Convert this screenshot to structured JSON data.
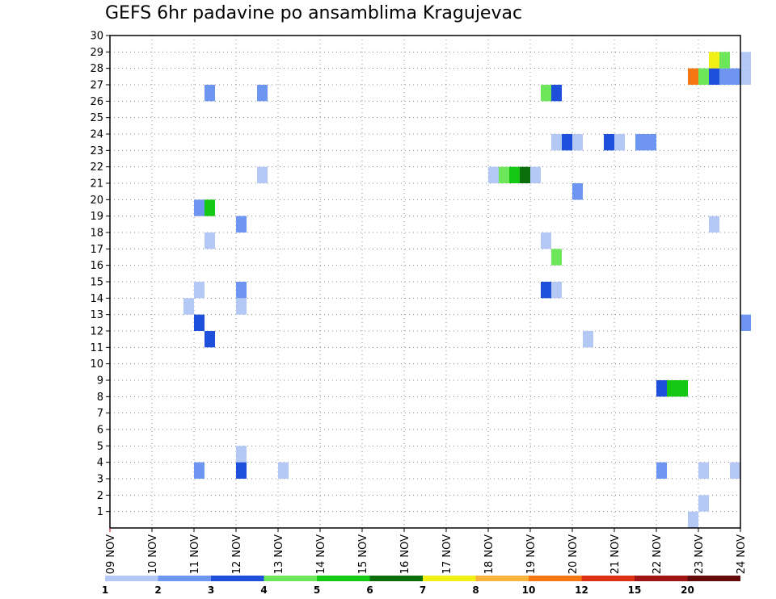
{
  "chart_data": {
    "type": "heatmap",
    "title": "GEFS 6hr padavine po ansamblima Kragujevac",
    "x_ticks": [
      "09 NOV",
      "10 NOV",
      "11 NOV",
      "12 NOV",
      "13 NOV",
      "14 NOV",
      "15 NOV",
      "16 NOV",
      "17 NOV",
      "18 NOV",
      "19 NOV",
      "20 NOV",
      "21 NOV",
      "22 NOV",
      "23 NOV",
      "24 NOV"
    ],
    "y_ticks": [
      1,
      2,
      3,
      4,
      5,
      6,
      7,
      8,
      9,
      10,
      11,
      12,
      13,
      14,
      15,
      16,
      17,
      18,
      19,
      20,
      21,
      22,
      23,
      24,
      25,
      26,
      27,
      28,
      29,
      30
    ],
    "ylim": [
      0,
      30
    ],
    "xlim_days": [
      0,
      15
    ],
    "grid": true,
    "colorbar": {
      "labels": [
        "1",
        "2",
        "3",
        "4",
        "5",
        "6",
        "7",
        "8",
        "10",
        "12",
        "15",
        "20"
      ],
      "colors": [
        "#b4c8f5",
        "#6e96f0",
        "#1e50dc",
        "#6ee65a",
        "#14c814",
        "#0a6e0a",
        "#f0f014",
        "#fab43c",
        "#f57814",
        "#dc3214",
        "#a01414",
        "#640a0a"
      ]
    },
    "cells": [
      {
        "day": 11,
        "step": 1,
        "member": 27,
        "color": "#6e96f0"
      },
      {
        "day": 12,
        "step": 2,
        "member": 27,
        "color": "#6e96f0"
      },
      {
        "day": 19,
        "step": 1,
        "member": 27,
        "color": "#6ee65a"
      },
      {
        "day": 19,
        "step": 2,
        "member": 27,
        "color": "#1e50dc"
      },
      {
        "day": 22,
        "step": 3,
        "member": 28,
        "color": "#f57814"
      },
      {
        "day": 23,
        "step": 0,
        "member": 28,
        "color": "#6ee65a"
      },
      {
        "day": 23,
        "step": 1,
        "member": 28,
        "color": "#1e50dc"
      },
      {
        "day": 23,
        "step": 2,
        "member": 28,
        "color": "#6e96f0"
      },
      {
        "day": 23,
        "step": 3,
        "member": 28,
        "color": "#6e96f0"
      },
      {
        "day": 23,
        "step": 4,
        "member": 28,
        "color": "#b4c8f5"
      },
      {
        "day": 23,
        "step": 1,
        "member": 29,
        "color": "#f0f014"
      },
      {
        "day": 23,
        "step": 2,
        "member": 29,
        "color": "#6ee65a"
      },
      {
        "day": 23,
        "step": 4,
        "member": 29,
        "color": "#b4c8f5"
      },
      {
        "day": 19,
        "step": 2,
        "member": 24,
        "color": "#b4c8f5"
      },
      {
        "day": 19,
        "step": 3,
        "member": 24,
        "color": "#1e50dc"
      },
      {
        "day": 20,
        "step": 0,
        "member": 24,
        "color": "#b4c8f5"
      },
      {
        "day": 20,
        "step": 3,
        "member": 24,
        "color": "#1e50dc"
      },
      {
        "day": 21,
        "step": 0,
        "member": 24,
        "color": "#b4c8f5"
      },
      {
        "day": 21,
        "step": 2,
        "member": 24,
        "color": "#6e96f0"
      },
      {
        "day": 21,
        "step": 3,
        "member": 24,
        "color": "#6e96f0"
      },
      {
        "day": 12,
        "step": 2,
        "member": 22,
        "color": "#b4c8f5"
      },
      {
        "day": 18,
        "step": 0,
        "member": 22,
        "color": "#b4c8f5"
      },
      {
        "day": 18,
        "step": 1,
        "member": 22,
        "color": "#6ee65a"
      },
      {
        "day": 18,
        "step": 2,
        "member": 22,
        "color": "#14c814"
      },
      {
        "day": 18,
        "step": 3,
        "member": 22,
        "color": "#0a6e0a"
      },
      {
        "day": 18,
        "step": 4,
        "member": 22,
        "color": "#b4c8f5"
      },
      {
        "day": 19,
        "step": 4,
        "member": 21,
        "color": "#6e96f0"
      },
      {
        "day": 20,
        "step": 0,
        "member": 21,
        "color": "#6e96f0"
      },
      {
        "day": 11,
        "step": 0,
        "member": 20,
        "color": "#6e96f0"
      },
      {
        "day": 11,
        "step": 1,
        "member": 20,
        "color": "#14c814"
      },
      {
        "day": 11,
        "step": 4,
        "member": 19,
        "color": "#6e96f0"
      },
      {
        "day": 12,
        "step": 0,
        "member": 19,
        "color": "#6e96f0"
      },
      {
        "day": 23,
        "step": 1,
        "member": 19,
        "color": "#b4c8f5"
      },
      {
        "day": 11,
        "step": 1,
        "member": 18,
        "color": "#b4c8f5"
      },
      {
        "day": 19,
        "step": 1,
        "member": 18,
        "color": "#b4c8f5"
      },
      {
        "day": 19,
        "step": 2,
        "member": 17,
        "color": "#6ee65a"
      },
      {
        "day": 11,
        "step": 0,
        "member": 15,
        "color": "#b4c8f5"
      },
      {
        "day": 11,
        "step": 4,
        "member": 15,
        "color": "#6e96f0"
      },
      {
        "day": 19,
        "step": 1,
        "member": 15,
        "color": "#1e50dc"
      },
      {
        "day": 19,
        "step": 2,
        "member": 15,
        "color": "#b4c8f5"
      },
      {
        "day": 11,
        "step": 4,
        "member": 14,
        "color": "#b4c8f5"
      },
      {
        "day": 10,
        "step": 3,
        "member": 14,
        "color": "#b4c8f5"
      },
      {
        "day": 11,
        "step": 0,
        "member": 13,
        "color": "#1e50dc"
      },
      {
        "day": 23,
        "step": 4,
        "member": 13,
        "color": "#6e96f0"
      },
      {
        "day": 11,
        "step": 1,
        "member": 12,
        "color": "#1e50dc"
      },
      {
        "day": 20,
        "step": 1,
        "member": 12,
        "color": "#b4c8f5"
      },
      {
        "day": 22,
        "step": 0,
        "member": 9,
        "color": "#1e50dc"
      },
      {
        "day": 22,
        "step": 1,
        "member": 9,
        "color": "#14c814"
      },
      {
        "day": 22,
        "step": 2,
        "member": 9,
        "color": "#14c814"
      },
      {
        "day": 11,
        "step": 4,
        "member": 5,
        "color": "#b4c8f5"
      },
      {
        "day": 11,
        "step": 0,
        "member": 4,
        "color": "#6e96f0"
      },
      {
        "day": 12,
        "step": 0,
        "member": 4,
        "color": "#1e50dc"
      },
      {
        "day": 13,
        "step": 0,
        "member": 4,
        "color": "#b4c8f5"
      },
      {
        "day": 21,
        "step": 4,
        "member": 4,
        "color": "#6e96f0"
      },
      {
        "day": 23,
        "step": 0,
        "member": 4,
        "color": "#b4c8f5"
      },
      {
        "day": 23,
        "step": 3,
        "member": 4,
        "color": "#b4c8f5"
      },
      {
        "day": 22,
        "step": 4,
        "member": 2,
        "color": "#b4c8f5"
      },
      {
        "day": 22,
        "step": 3,
        "member": 1,
        "color": "#b4c8f5"
      }
    ]
  }
}
